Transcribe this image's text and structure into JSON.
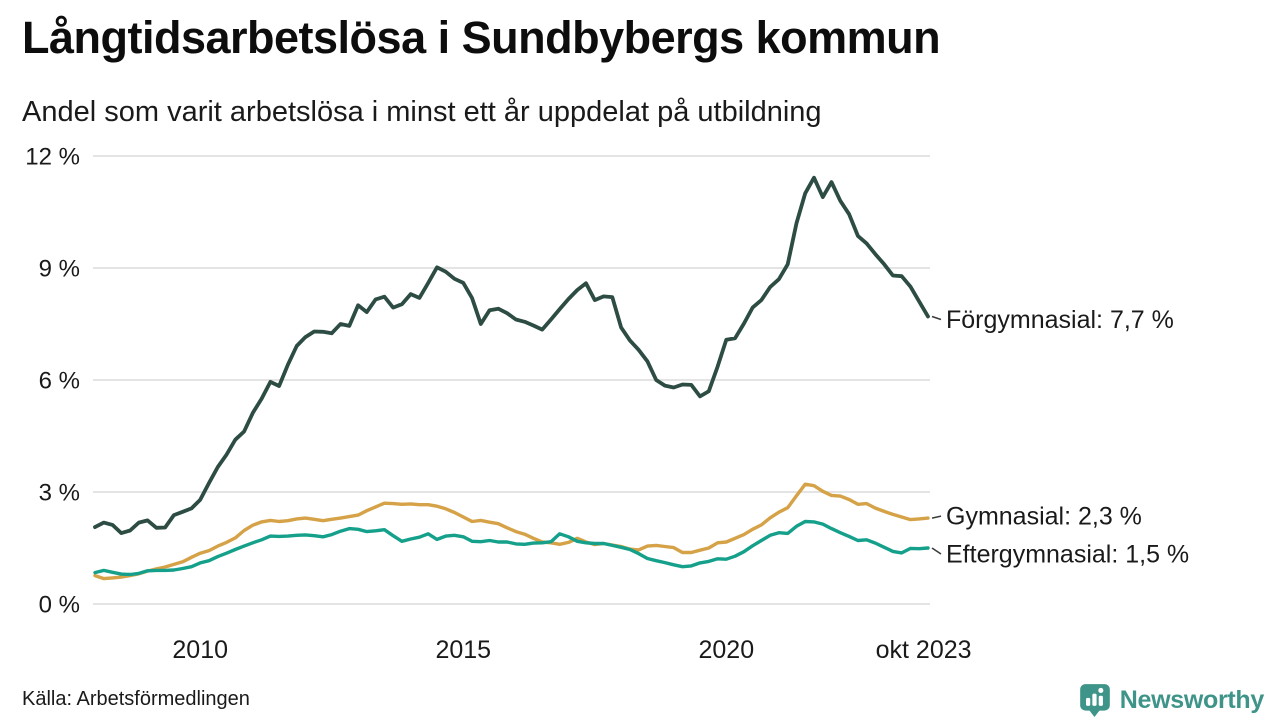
{
  "page": {
    "title": "Långtidsarbetslösa i Sundbybergs kommun",
    "subtitle": "Andel som varit arbetslösa i minst ett år uppdelat på utbildning",
    "source": "Källa: Arbetsförmedlingen",
    "brand": {
      "name": "Newsworthy",
      "color": "#3E9488"
    }
  },
  "chart_data": {
    "type": "line",
    "title": "Långtidsarbetslösa i Sundbybergs kommun",
    "subtitle": "Andel som varit arbetslösa i minst ett år uppdelat på utbildning",
    "unit": "%",
    "grid": "horizontal",
    "legend_position": "right-end-labels",
    "y_axis": {
      "min": 0,
      "max": 12,
      "ticks": [
        {
          "value": 0,
          "label": "0 %"
        },
        {
          "value": 3,
          "label": "3 %"
        },
        {
          "value": 6,
          "label": "6 %"
        },
        {
          "value": 9,
          "label": "9 %"
        },
        {
          "value": 12,
          "label": "12 %"
        }
      ]
    },
    "x_axis": {
      "start": "2008",
      "end": "okt 2023",
      "total_months": 190,
      "step_months_between_points": 2,
      "ticks": [
        {
          "label": "2010",
          "month": 24
        },
        {
          "label": "2015",
          "month": 84
        },
        {
          "label": "2020",
          "month": 144
        },
        {
          "label": "okt 2023",
          "month": 189
        }
      ]
    },
    "series": [
      {
        "name": "Förgymnasial",
        "color": "#2c4c44",
        "end_label": "Förgymnasial: 7,7 %",
        "last_value": 7.7,
        "values": [
          2.06,
          2.18,
          2.12,
          1.9,
          1.97,
          2.18,
          2.24,
          2.04,
          2.05,
          2.38,
          2.47,
          2.56,
          2.79,
          3.24,
          3.67,
          4.0,
          4.4,
          4.62,
          5.12,
          5.5,
          5.95,
          5.84,
          6.41,
          6.91,
          7.15,
          7.3,
          7.29,
          7.25,
          7.5,
          7.45,
          8.0,
          7.82,
          8.16,
          8.23,
          7.94,
          8.03,
          8.3,
          8.2,
          8.6,
          9.02,
          8.9,
          8.71,
          8.6,
          8.2,
          7.5,
          7.87,
          7.91,
          7.79,
          7.62,
          7.56,
          7.46,
          7.35,
          7.62,
          7.9,
          8.17,
          8.41,
          8.59,
          8.14,
          8.24,
          8.22,
          7.41,
          7.06,
          6.81,
          6.5,
          6.0,
          5.85,
          5.8,
          5.88,
          5.87,
          5.56,
          5.7,
          6.36,
          7.08,
          7.12,
          7.51,
          7.94,
          8.14,
          8.49,
          8.7,
          9.1,
          10.2,
          11.0,
          11.42,
          10.9,
          11.3,
          10.8,
          10.44,
          9.86,
          9.66,
          9.37,
          9.1,
          8.8,
          8.78,
          8.5,
          8.1,
          7.7
        ]
      },
      {
        "name": "Gymnasial",
        "color": "#d5a247",
        "end_label": "Gymnasial: 2,3 %",
        "last_value": 2.3,
        "values": [
          0.76,
          0.68,
          0.7,
          0.72,
          0.76,
          0.81,
          0.88,
          0.94,
          0.99,
          1.06,
          1.13,
          1.25,
          1.36,
          1.43,
          1.55,
          1.65,
          1.77,
          1.97,
          2.11,
          2.2,
          2.24,
          2.21,
          2.23,
          2.28,
          2.3,
          2.27,
          2.23,
          2.27,
          2.3,
          2.34,
          2.38,
          2.5,
          2.6,
          2.7,
          2.69,
          2.67,
          2.68,
          2.66,
          2.66,
          2.62,
          2.55,
          2.45,
          2.33,
          2.21,
          2.24,
          2.19,
          2.15,
          2.04,
          1.94,
          1.87,
          1.76,
          1.66,
          1.64,
          1.6,
          1.65,
          1.76,
          1.66,
          1.59,
          1.62,
          1.58,
          1.54,
          1.47,
          1.45,
          1.55,
          1.57,
          1.54,
          1.51,
          1.38,
          1.38,
          1.44,
          1.5,
          1.64,
          1.66,
          1.76,
          1.86,
          2.0,
          2.12,
          2.31,
          2.46,
          2.58,
          2.9,
          3.21,
          3.17,
          3.02,
          2.91,
          2.89,
          2.8,
          2.67,
          2.69,
          2.57,
          2.48,
          2.4,
          2.33,
          2.26,
          2.28,
          2.3
        ]
      },
      {
        "name": "Eftergymnasial",
        "color": "#14a08a",
        "end_label": "Eftergymnasial: 1,5 %",
        "last_value": 1.5,
        "values": [
          0.84,
          0.9,
          0.85,
          0.8,
          0.79,
          0.82,
          0.89,
          0.9,
          0.9,
          0.91,
          0.95,
          1.0,
          1.1,
          1.16,
          1.27,
          1.36,
          1.46,
          1.55,
          1.64,
          1.72,
          1.82,
          1.81,
          1.82,
          1.84,
          1.85,
          1.83,
          1.8,
          1.86,
          1.95,
          2.02,
          2.0,
          1.94,
          1.96,
          1.99,
          1.83,
          1.68,
          1.74,
          1.79,
          1.88,
          1.73,
          1.82,
          1.84,
          1.8,
          1.68,
          1.67,
          1.7,
          1.66,
          1.66,
          1.61,
          1.6,
          1.63,
          1.64,
          1.67,
          1.88,
          1.8,
          1.68,
          1.64,
          1.62,
          1.62,
          1.57,
          1.52,
          1.46,
          1.35,
          1.22,
          1.16,
          1.11,
          1.05,
          1.0,
          1.02,
          1.1,
          1.14,
          1.21,
          1.2,
          1.28,
          1.4,
          1.56,
          1.7,
          1.84,
          1.91,
          1.89,
          2.08,
          2.21,
          2.2,
          2.14,
          2.02,
          1.91,
          1.81,
          1.7,
          1.72,
          1.63,
          1.52,
          1.41,
          1.37,
          1.49,
          1.48,
          1.5
        ]
      }
    ]
  }
}
